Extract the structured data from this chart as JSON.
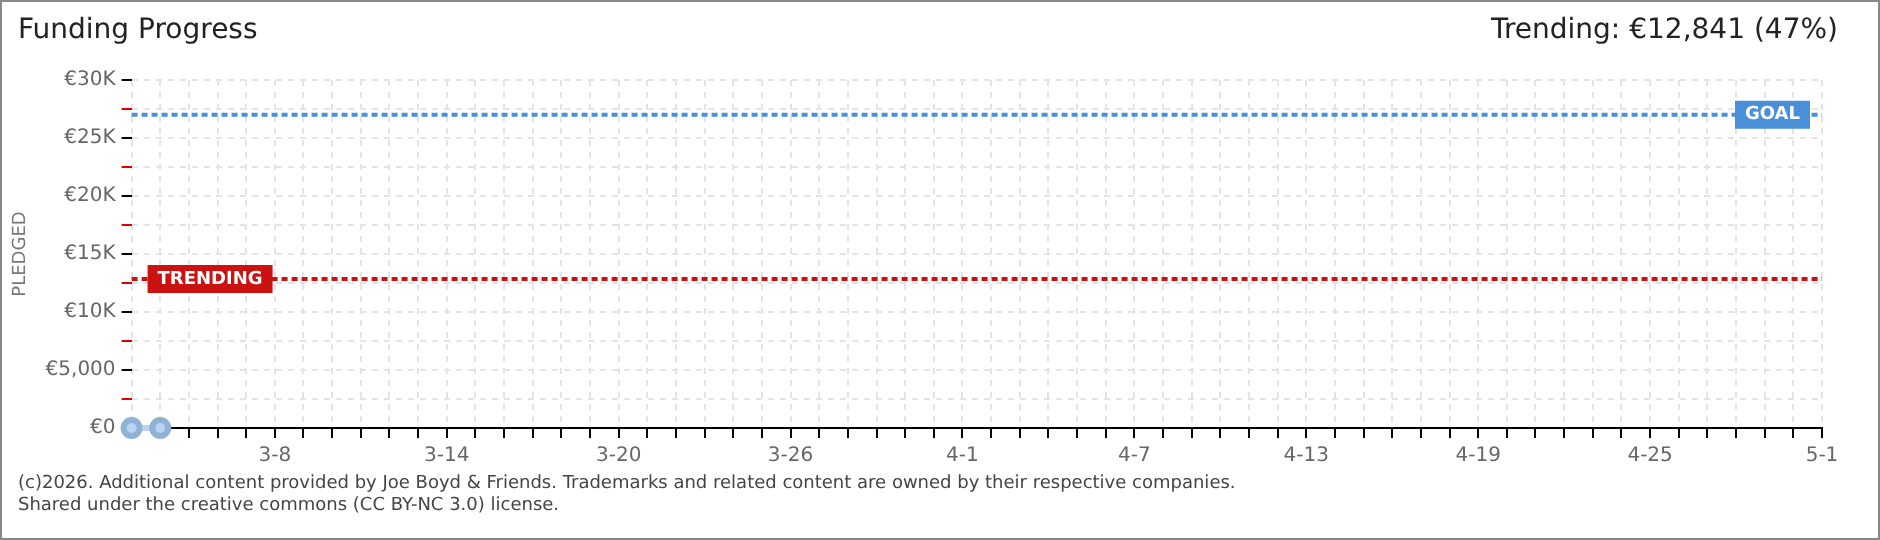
{
  "chart_data": {
    "type": "line",
    "title": "Funding Progress",
    "subtitle": "Trending: €12,841 (47%)",
    "ylabel": "PLEDGED",
    "x": [
      "--03-03",
      "--03-04"
    ],
    "series": [
      {
        "color": "#b8d4f0",
        "values": [
          0,
          0
        ]
      }
    ],
    "marker": "circle",
    "line_style": "solid",
    "grid": true,
    "legend": false,
    "xlim": [
      "--03-03",
      "--05-01"
    ],
    "xticks": [
      {
        "value": "--03-03",
        "label": null
      },
      {
        "value": "--03-04",
        "label": null
      },
      {
        "value": "--03-05",
        "label": null
      },
      {
        "value": "--03-06",
        "label": null
      },
      {
        "value": "--03-07",
        "label": null
      },
      {
        "value": "--03-08",
        "label": "3-8"
      },
      {
        "value": "--03-09",
        "label": null
      },
      {
        "value": "--03-10",
        "label": null
      },
      {
        "value": "--03-11",
        "label": null
      },
      {
        "value": "--03-12",
        "label": null
      },
      {
        "value": "--03-13",
        "label": null
      },
      {
        "value": "--03-14",
        "label": "3-14"
      },
      {
        "value": "--03-15",
        "label": null
      },
      {
        "value": "--03-16",
        "label": null
      },
      {
        "value": "--03-17",
        "label": null
      },
      {
        "value": "--03-18",
        "label": null
      },
      {
        "value": "--03-19",
        "label": null
      },
      {
        "value": "--03-20",
        "label": "3-20"
      },
      {
        "value": "--03-21",
        "label": null
      },
      {
        "value": "--03-22",
        "label": null
      },
      {
        "value": "--03-23",
        "label": null
      },
      {
        "value": "--03-24",
        "label": null
      },
      {
        "value": "--03-25",
        "label": null
      },
      {
        "value": "--03-26",
        "label": "3-26"
      },
      {
        "value": "--03-27",
        "label": null
      },
      {
        "value": "--03-28",
        "label": null
      },
      {
        "value": "--03-29",
        "label": null
      },
      {
        "value": "--03-30",
        "label": null
      },
      {
        "value": "--03-31",
        "label": null
      },
      {
        "value": "--04-01",
        "label": "4-1"
      },
      {
        "value": "--04-02",
        "label": null
      },
      {
        "value": "--04-03",
        "label": null
      },
      {
        "value": "--04-04",
        "label": null
      },
      {
        "value": "--04-05",
        "label": null
      },
      {
        "value": "--04-06",
        "label": null
      },
      {
        "value": "--04-07",
        "label": "4-7"
      },
      {
        "value": "--04-08",
        "label": null
      },
      {
        "value": "--04-09",
        "label": null
      },
      {
        "value": "--04-10",
        "label": null
      },
      {
        "value": "--04-11",
        "label": null
      },
      {
        "value": "--04-12",
        "label": null
      },
      {
        "value": "--04-13",
        "label": "4-13"
      },
      {
        "value": "--04-14",
        "label": null
      },
      {
        "value": "--04-15",
        "label": null
      },
      {
        "value": "--04-16",
        "label": null
      },
      {
        "value": "--04-17",
        "label": null
      },
      {
        "value": "--04-18",
        "label": null
      },
      {
        "value": "--04-19",
        "label": "4-19"
      },
      {
        "value": "--04-20",
        "label": null
      },
      {
        "value": "--04-21",
        "label": null
      },
      {
        "value": "--04-22",
        "label": null
      },
      {
        "value": "--04-23",
        "label": null
      },
      {
        "value": "--04-24",
        "label": null
      },
      {
        "value": "--04-25",
        "label": "4-25"
      },
      {
        "value": "--04-26",
        "label": null
      },
      {
        "value": "--04-27",
        "label": null
      },
      {
        "value": "--04-28",
        "label": null
      },
      {
        "value": "--04-29",
        "label": null
      },
      {
        "value": "--04-30",
        "label": null
      },
      {
        "value": "--05-01",
        "label": "5-1"
      }
    ],
    "ylim": [
      0,
      30000
    ],
    "yticks": [
      {
        "value": 0,
        "label": "€0"
      },
      {
        "value": 2500,
        "label": null
      },
      {
        "value": 5000,
        "label": "€5,000"
      },
      {
        "value": 7500,
        "label": null
      },
      {
        "value": 10000,
        "label": "€10K"
      },
      {
        "value": 12500,
        "label": null
      },
      {
        "value": 15000,
        "label": "€15K"
      },
      {
        "value": 17500,
        "label": null
      },
      {
        "value": 20000,
        "label": "€20K"
      },
      {
        "value": 22500,
        "label": null
      },
      {
        "value": 25000,
        "label": "€25K"
      },
      {
        "value": 27500,
        "label": null
      },
      {
        "value": 30000,
        "label": "€30K"
      }
    ],
    "ref_lines": [
      {
        "axis": "y",
        "value": 27000,
        "label": "GOAL",
        "color": "#4a90d9",
        "line_style": "dotted"
      },
      {
        "axis": "y",
        "value": 12841,
        "label": "TRENDING",
        "color": "#cc1111",
        "line_style": "dotted"
      }
    ],
    "annotations": [
      "(c)2026. Additional content provided by Joe Boyd & Friends. Trademarks and related content are owned by their respective companies.",
      "Shared under the creative commons (CC BY-NC 3.0) license."
    ]
  }
}
